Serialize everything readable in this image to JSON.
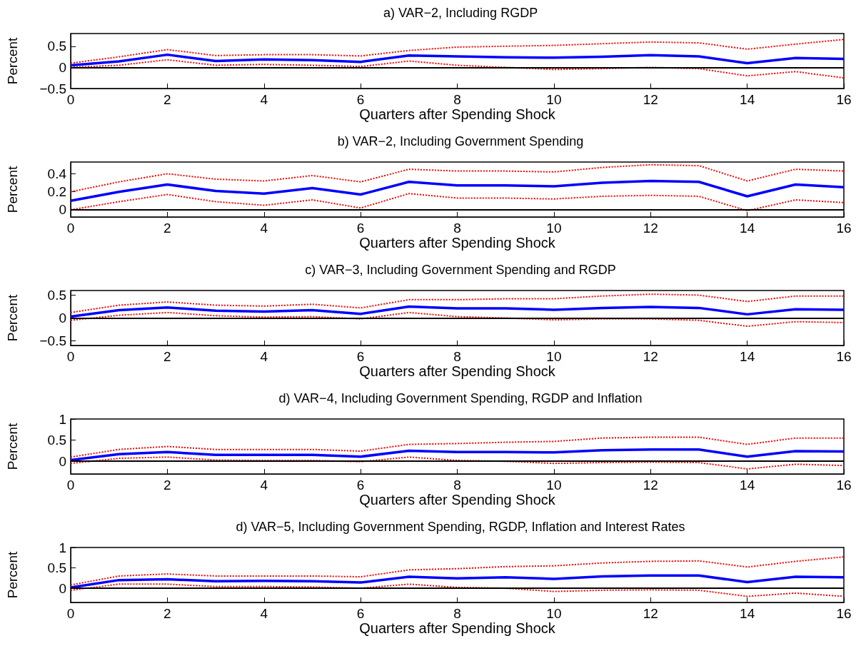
{
  "chart_data": [
    {
      "type": "line",
      "title": "a) VAR−2, Including RGDP",
      "xlabel": "Quarters after Spending Shock",
      "ylabel": "Percent",
      "x": [
        0,
        1,
        2,
        3,
        4,
        5,
        6,
        7,
        8,
        9,
        10,
        11,
        12,
        13,
        14,
        15,
        16
      ],
      "xlim": [
        0,
        16
      ],
      "xticks": [
        0,
        2,
        4,
        6,
        8,
        10,
        12,
        14,
        16
      ],
      "ylim": [
        -0.5,
        0.8
      ],
      "yticks": [
        -0.5,
        0,
        0.5
      ],
      "grid": false,
      "marker": "none",
      "ref_lines": [
        {
          "axis": "y",
          "value": 0,
          "color": "#000000"
        }
      ],
      "series": [
        {
          "color": "#0000ff",
          "line_style": "solid",
          "values": [
            0.05,
            0.14,
            0.3,
            0.15,
            0.19,
            0.17,
            0.13,
            0.28,
            0.26,
            0.24,
            0.23,
            0.25,
            0.29,
            0.26,
            0.1,
            0.22,
            0.2
          ]
        },
        {
          "color": "#ff0000",
          "line_style": "dotted",
          "values": [
            0.1,
            0.25,
            0.42,
            0.28,
            0.3,
            0.3,
            0.27,
            0.4,
            0.48,
            0.5,
            0.52,
            0.56,
            0.6,
            0.58,
            0.43,
            0.55,
            0.66
          ]
        },
        {
          "color": "#ff0000",
          "line_style": "dotted",
          "values": [
            0,
            0.05,
            0.18,
            0.05,
            0.07,
            0.05,
            0.02,
            0.15,
            0.05,
            0,
            -0.05,
            -0.03,
            0,
            -0.03,
            -0.2,
            -0.1,
            -0.25
          ]
        }
      ]
    },
    {
      "type": "line",
      "title": "b) VAR−2, Including Government Spending",
      "xlabel": "Quarters after Spending Shock",
      "ylabel": "Percent",
      "x": [
        0,
        1,
        2,
        3,
        4,
        5,
        6,
        7,
        8,
        9,
        10,
        11,
        12,
        13,
        14,
        15,
        16
      ],
      "xlim": [
        0,
        16
      ],
      "xticks": [
        0,
        2,
        4,
        6,
        8,
        10,
        12,
        14,
        16
      ],
      "ylim": [
        -0.08,
        0.53
      ],
      "yticks": [
        0,
        0.2,
        0.4
      ],
      "grid": false,
      "marker": "none",
      "ref_lines": [
        {
          "axis": "y",
          "value": 0,
          "color": "#000000"
        }
      ],
      "series": [
        {
          "color": "#0000ff",
          "line_style": "solid",
          "values": [
            0.1,
            0.2,
            0.28,
            0.21,
            0.18,
            0.24,
            0.17,
            0.31,
            0.27,
            0.27,
            0.26,
            0.3,
            0.32,
            0.31,
            0.15,
            0.28,
            0.25
          ]
        },
        {
          "color": "#ff0000",
          "line_style": "dotted",
          "values": [
            0.2,
            0.31,
            0.4,
            0.34,
            0.32,
            0.38,
            0.31,
            0.45,
            0.43,
            0.43,
            0.42,
            0.47,
            0.5,
            0.49,
            0.32,
            0.45,
            0.43
          ]
        },
        {
          "color": "#ff0000",
          "line_style": "dotted",
          "values": [
            0,
            0.09,
            0.17,
            0.09,
            0.05,
            0.11,
            0.02,
            0.18,
            0.13,
            0.13,
            0.12,
            0.15,
            0.16,
            0.15,
            -0.01,
            0.11,
            0.08
          ]
        }
      ]
    },
    {
      "type": "line",
      "title": "c) VAR−3, Including Government Spending and RGDP",
      "xlabel": "Quarters after Spending Shock",
      "ylabel": "Percent",
      "x": [
        0,
        1,
        2,
        3,
        4,
        5,
        6,
        7,
        8,
        9,
        10,
        11,
        12,
        13,
        14,
        15,
        16
      ],
      "xlim": [
        0,
        16
      ],
      "xticks": [
        0,
        2,
        4,
        6,
        8,
        10,
        12,
        14,
        16
      ],
      "ylim": [
        -0.6,
        0.6
      ],
      "yticks": [
        -0.5,
        0,
        0.5
      ],
      "grid": false,
      "marker": "none",
      "ref_lines": [
        {
          "axis": "y",
          "value": 0,
          "color": "#000000"
        }
      ],
      "series": [
        {
          "color": "#0000ff",
          "line_style": "solid",
          "values": [
            0.03,
            0.17,
            0.23,
            0.16,
            0.14,
            0.17,
            0.09,
            0.25,
            0.21,
            0.21,
            0.18,
            0.22,
            0.24,
            0.22,
            0.08,
            0.19,
            0.18
          ]
        },
        {
          "color": "#ff0000",
          "line_style": "dotted",
          "values": [
            0.12,
            0.28,
            0.35,
            0.28,
            0.26,
            0.3,
            0.22,
            0.4,
            0.4,
            0.42,
            0.42,
            0.48,
            0.52,
            0.5,
            0.36,
            0.48,
            0.48
          ]
        },
        {
          "color": "#ff0000",
          "line_style": "dotted",
          "values": [
            -0.05,
            0.06,
            0.12,
            0.05,
            0.02,
            0.03,
            -0.02,
            0.12,
            0.03,
            0,
            -0.04,
            -0.02,
            -0.02,
            -0.05,
            -0.18,
            -0.08,
            -0.1
          ]
        }
      ]
    },
    {
      "type": "line",
      "title": "d) VAR−4, Including Government Spending, RGDP and Inflation",
      "xlabel": "Quarters after Spending Shock",
      "ylabel": "Percent",
      "x": [
        0,
        1,
        2,
        3,
        4,
        5,
        6,
        7,
        8,
        9,
        10,
        11,
        12,
        13,
        14,
        15,
        16
      ],
      "xlim": [
        0,
        16
      ],
      "xticks": [
        0,
        2,
        4,
        6,
        8,
        10,
        12,
        14,
        16
      ],
      "ylim": [
        -0.3,
        1
      ],
      "yticks": [
        0,
        0.5,
        1
      ],
      "grid": false,
      "marker": "none",
      "ref_lines": [
        {
          "axis": "y",
          "value": 0,
          "color": "#000000"
        }
      ],
      "series": [
        {
          "color": "#0000ff",
          "line_style": "solid",
          "values": [
            0.03,
            0.17,
            0.22,
            0.15,
            0.15,
            0.15,
            0.11,
            0.25,
            0.22,
            0.22,
            0.21,
            0.26,
            0.28,
            0.28,
            0.11,
            0.24,
            0.23
          ]
        },
        {
          "color": "#ff0000",
          "line_style": "dotted",
          "values": [
            0.1,
            0.28,
            0.35,
            0.28,
            0.28,
            0.28,
            0.24,
            0.4,
            0.42,
            0.45,
            0.47,
            0.55,
            0.57,
            0.57,
            0.4,
            0.55,
            0.55
          ]
        },
        {
          "color": "#ff0000",
          "line_style": "dotted",
          "values": [
            -0.05,
            0.07,
            0.1,
            0.03,
            0.02,
            0.02,
            -0.01,
            0.1,
            0.02,
            0,
            -0.05,
            -0.03,
            -0.02,
            -0.03,
            -0.18,
            -0.07,
            -0.1
          ]
        }
      ]
    },
    {
      "type": "line",
      "title": "d) VAR−5, Including Government Spending, RGDP, Inflation and Interest Rates",
      "xlabel": "Quarters after Spending Shock",
      "ylabel": "Percent",
      "x": [
        0,
        1,
        2,
        3,
        4,
        5,
        6,
        7,
        8,
        9,
        10,
        11,
        12,
        13,
        14,
        15,
        16
      ],
      "xlim": [
        0,
        16
      ],
      "xticks": [
        0,
        2,
        4,
        6,
        8,
        10,
        12,
        14,
        16
      ],
      "ylim": [
        -0.35,
        1
      ],
      "yticks": [
        0,
        0.5,
        1
      ],
      "grid": false,
      "marker": "none",
      "ref_lines": [
        {
          "axis": "y",
          "value": 0,
          "color": "#000000"
        }
      ],
      "series": [
        {
          "color": "#0000ff",
          "line_style": "solid",
          "values": [
            0.02,
            0.2,
            0.22,
            0.17,
            0.18,
            0.17,
            0.14,
            0.28,
            0.24,
            0.27,
            0.23,
            0.29,
            0.31,
            0.31,
            0.15,
            0.28,
            0.27
          ]
        },
        {
          "color": "#ff0000",
          "line_style": "dotted",
          "values": [
            0.08,
            0.3,
            0.35,
            0.3,
            0.3,
            0.3,
            0.28,
            0.45,
            0.48,
            0.53,
            0.55,
            0.62,
            0.66,
            0.67,
            0.52,
            0.66,
            0.77
          ]
        },
        {
          "color": "#ff0000",
          "line_style": "dotted",
          "values": [
            -0.05,
            0.1,
            0.1,
            0.04,
            0.04,
            0.03,
            0,
            0.1,
            0.02,
            0,
            -0.08,
            -0.05,
            -0.04,
            -0.05,
            -0.2,
            -0.12,
            -0.2
          ]
        }
      ]
    }
  ]
}
